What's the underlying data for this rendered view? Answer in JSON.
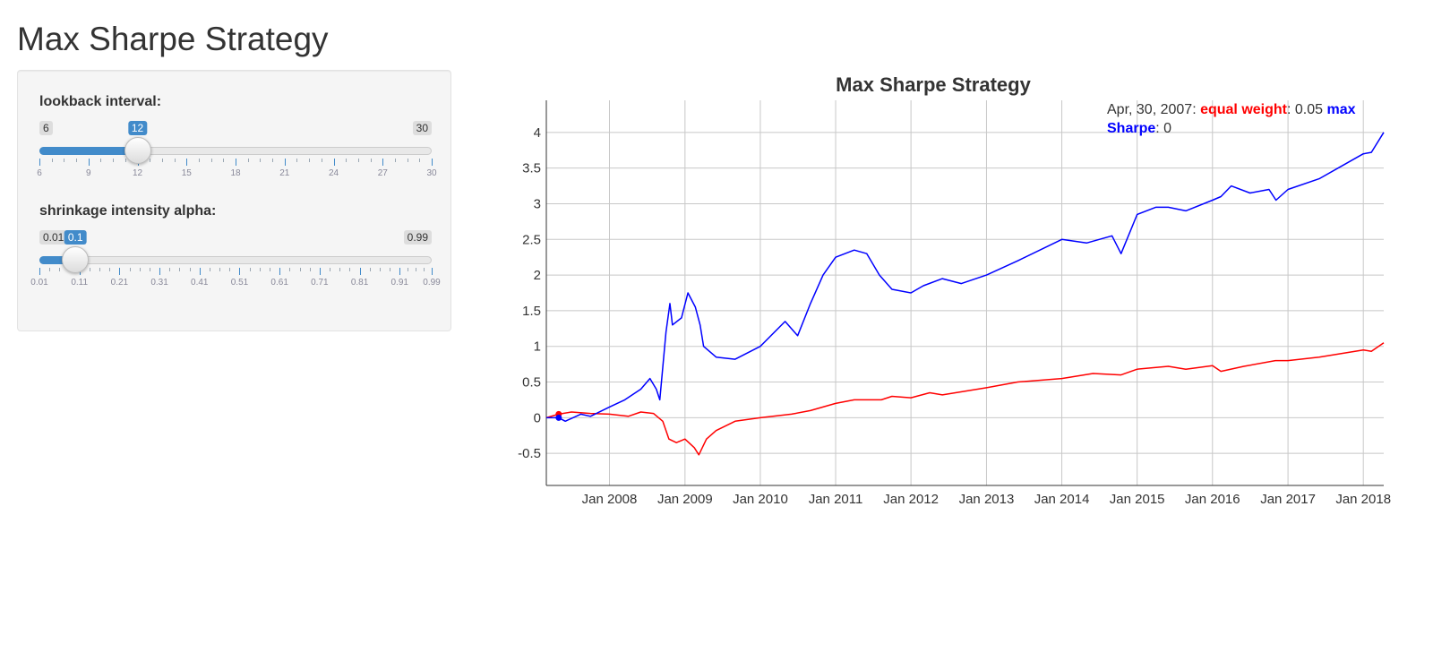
{
  "page": {
    "title": "Max Sharpe Strategy"
  },
  "controls": {
    "lookback": {
      "label": "lookback interval:",
      "min": 6,
      "max": 30,
      "value": 12,
      "min_label": "6",
      "max_label": "30",
      "value_label": "12",
      "tick_labels": [
        "6",
        "9",
        "12",
        "15",
        "18",
        "21",
        "24",
        "27",
        "30"
      ]
    },
    "alpha": {
      "label": "shrinkage intensity alpha:",
      "min": 0.01,
      "max": 0.99,
      "value": 0.1,
      "min_label": "0.01",
      "max_label": "0.99",
      "value_label": "0.1",
      "tick_labels": [
        "0.01",
        "0.11",
        "0.21",
        "0.31",
        "0.41",
        "0.51",
        "0.61",
        "0.71",
        "0.81",
        "0.91",
        "0.99"
      ]
    }
  },
  "legend": {
    "date": "Apr, 30, 2007",
    "equal_weight_name": "equal weight",
    "equal_weight_value": "0.05",
    "max_sharpe_name": "max Sharpe",
    "max_sharpe_value": "0"
  },
  "colors": {
    "accent": "#428bca",
    "equal_weight": "#ff0000",
    "max_sharpe": "#0000ff"
  },
  "chart_data": {
    "type": "line",
    "title": "Max Sharpe Strategy",
    "xlabel": "",
    "ylabel": "",
    "ylim": [
      -0.95,
      4.45
    ],
    "xlim": [
      "2007-03-01",
      "2018-04-10"
    ],
    "x_tick_labels": [
      "Jan 2008",
      "Jan 2009",
      "Jan 2010",
      "Jan 2011",
      "Jan 2012",
      "Jan 2013",
      "Jan 2014",
      "Jan 2015",
      "Jan 2016",
      "Jan 2017",
      "Jan 2018"
    ],
    "x_tick_dates": [
      "2008-01-01",
      "2009-01-01",
      "2010-01-01",
      "2011-01-01",
      "2012-01-01",
      "2013-01-01",
      "2014-01-01",
      "2015-01-01",
      "2016-01-01",
      "2017-01-01",
      "2018-01-01"
    ],
    "y_tick_labels": [
      "-0.5",
      "0",
      "0.5",
      "1",
      "1.5",
      "2",
      "2.5",
      "3",
      "3.5",
      "4"
    ],
    "y_ticks": [
      -0.5,
      0,
      0.5,
      1,
      1.5,
      2,
      2.5,
      3,
      3.5,
      4
    ],
    "grid": true,
    "legend_position": "top-right",
    "series": [
      {
        "name": "equal weight",
        "color": "#ff0000",
        "x": [
          "2007-03-01",
          "2007-04-30",
          "2007-07-01",
          "2007-10-01",
          "2008-01-01",
          "2008-04-01",
          "2008-06-01",
          "2008-08-01",
          "2008-09-15",
          "2008-10-15",
          "2008-11-20",
          "2009-01-01",
          "2009-02-15",
          "2009-03-09",
          "2009-04-15",
          "2009-06-01",
          "2009-09-01",
          "2010-01-01",
          "2010-06-01",
          "2010-09-01",
          "2011-01-01",
          "2011-04-01",
          "2011-08-10",
          "2011-10-01",
          "2012-01-01",
          "2012-04-01",
          "2012-06-01",
          "2013-01-01",
          "2013-06-01",
          "2014-01-01",
          "2014-06-01",
          "2014-10-15",
          "2015-01-01",
          "2015-06-01",
          "2015-08-25",
          "2016-01-01",
          "2016-02-11",
          "2016-06-01",
          "2016-11-01",
          "2017-01-01",
          "2017-06-01",
          "2018-01-01",
          "2018-02-09",
          "2018-04-10"
        ],
        "values": [
          0.0,
          0.05,
          0.08,
          0.06,
          0.05,
          0.02,
          0.08,
          0.06,
          -0.05,
          -0.3,
          -0.35,
          -0.3,
          -0.42,
          -0.52,
          -0.3,
          -0.18,
          -0.05,
          0.0,
          0.05,
          0.1,
          0.2,
          0.25,
          0.25,
          0.3,
          0.28,
          0.35,
          0.32,
          0.42,
          0.5,
          0.55,
          0.62,
          0.6,
          0.68,
          0.72,
          0.68,
          0.73,
          0.65,
          0.72,
          0.8,
          0.8,
          0.85,
          0.95,
          0.93,
          1.05
        ]
      },
      {
        "name": "max Sharpe",
        "color": "#0000ff",
        "x": [
          "2007-03-01",
          "2007-04-30",
          "2007-06-01",
          "2007-08-15",
          "2007-10-01",
          "2008-01-01",
          "2008-03-15",
          "2008-06-01",
          "2008-07-15",
          "2008-08-15",
          "2008-09-01",
          "2008-10-01",
          "2008-10-20",
          "2008-11-01",
          "2008-12-15",
          "2009-01-15",
          "2009-02-20",
          "2009-03-15",
          "2009-04-01",
          "2009-06-01",
          "2009-09-01",
          "2010-01-01",
          "2010-05-01",
          "2010-07-01",
          "2010-09-01",
          "2010-11-01",
          "2011-01-01",
          "2011-04-01",
          "2011-06-01",
          "2011-08-01",
          "2011-10-01",
          "2012-01-01",
          "2012-03-01",
          "2012-06-01",
          "2012-09-01",
          "2013-01-01",
          "2013-06-01",
          "2014-01-01",
          "2014-05-01",
          "2014-09-01",
          "2014-10-15",
          "2015-01-01",
          "2015-04-01",
          "2015-06-01",
          "2015-08-25",
          "2016-01-01",
          "2016-02-11",
          "2016-04-01",
          "2016-07-01",
          "2016-10-01",
          "2016-11-04",
          "2017-01-01",
          "2017-06-01",
          "2017-10-01",
          "2018-01-01",
          "2018-02-09",
          "2018-04-10"
        ],
        "values": [
          0.0,
          0.0,
          -0.05,
          0.05,
          0.02,
          0.15,
          0.25,
          0.4,
          0.55,
          0.4,
          0.25,
          1.2,
          1.6,
          1.3,
          1.4,
          1.75,
          1.55,
          1.3,
          1.0,
          0.85,
          0.82,
          1.0,
          1.35,
          1.15,
          1.6,
          2.0,
          2.25,
          2.35,
          2.3,
          2.0,
          1.8,
          1.75,
          1.85,
          1.95,
          1.88,
          2.0,
          2.2,
          2.5,
          2.45,
          2.55,
          2.3,
          2.85,
          2.95,
          2.95,
          2.9,
          3.05,
          3.1,
          3.25,
          3.15,
          3.2,
          3.05,
          3.2,
          3.35,
          3.55,
          3.7,
          3.72,
          4.0
        ]
      }
    ]
  }
}
